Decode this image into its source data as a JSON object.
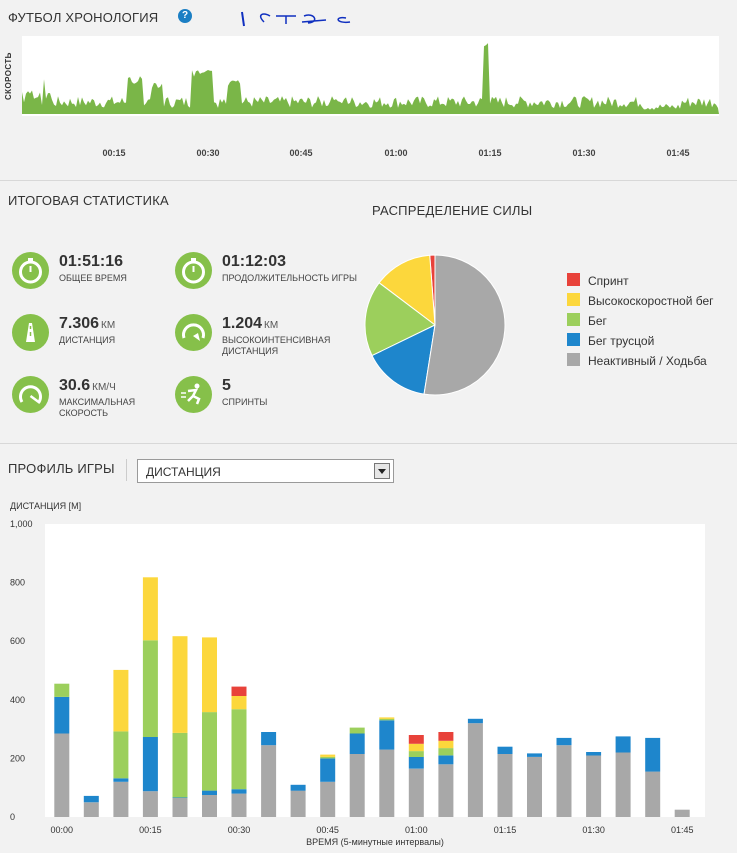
{
  "timeline": {
    "title": "ФУТБОЛ ХРОНОЛОГИЯ",
    "help_icon": "?",
    "ylabel": "СКОРОСТЬ",
    "ticks": [
      "00:15",
      "00:30",
      "00:45",
      "01:00",
      "01:15",
      "01:30",
      "01:45"
    ],
    "color": "#7ab648"
  },
  "summary": {
    "title": "ИТОГОВАЯ СТАТИСТИКА",
    "stats": [
      {
        "value": "01:51:16",
        "unit": "",
        "label": "ОБЩЕЕ ВРЕМЯ",
        "icon": "stopwatch-icon"
      },
      {
        "value": "01:12:03",
        "unit": "",
        "label": "ПРОДОЛЖИТЕЛЬНОСТЬ ИГРЫ",
        "icon": "stopwatch-icon"
      },
      {
        "value": "7.306",
        "unit": "КМ",
        "label": "ДИСТАНЦИЯ",
        "icon": "road-icon"
      },
      {
        "value": "1.204",
        "unit": "КМ",
        "label": "ВЫСОКОИНТЕНСИВНАЯ ДИСТАНЦИЯ",
        "icon": "speed-gauge-icon"
      },
      {
        "value": "30.6",
        "unit": "КМ/Ч",
        "label": "МАКСИМАЛЬНАЯ СКОРОСТЬ",
        "icon": "speedometer-icon"
      },
      {
        "value": "5",
        "unit": "",
        "label": "СПРИНТЫ",
        "icon": "sprinter-icon"
      }
    ]
  },
  "distribution": {
    "title": "РАСПРЕДЕЛЕНИЕ СИЛЫ",
    "legend": [
      {
        "label": "Спринт",
        "color": "#e8423a"
      },
      {
        "label": "Высокоскоростной бег",
        "color": "#fcd73c"
      },
      {
        "label": "Бег",
        "color": "#9ccf5c"
      },
      {
        "label": "Бег трусцой",
        "color": "#1e86cc"
      },
      {
        "label": "Неактивный / Ходьба",
        "color": "#a8a8a8"
      }
    ]
  },
  "profile": {
    "title": "ПРОФИЛЬ ИГРЫ",
    "selected": "ДИСТАНЦИЯ"
  },
  "chart_data": [
    {
      "type": "pie",
      "title": "РАСПРЕДЕЛЕНИЕ СИЛЫ",
      "categories": [
        "Спринт",
        "Высокоскоростной бег",
        "Бег",
        "Бег трусцой",
        "Неактивный / Ходьба"
      ],
      "values": [
        1.2,
        13.5,
        17.5,
        15.3,
        52.5
      ],
      "colors": [
        "#e8423a",
        "#fcd73c",
        "#9ccf5c",
        "#1e86cc",
        "#a8a8a8"
      ],
      "legend": "right"
    },
    {
      "type": "bar",
      "stacked": true,
      "ylabel": "ДИСТАНЦИЯ [M]",
      "xlabel": "ВРЕМЯ (5-минутные интервалы)",
      "ylim": [
        0,
        1000
      ],
      "yticks": [
        "0",
        "200",
        "400",
        "600",
        "800",
        "1,000"
      ],
      "xticks": [
        "00:00",
        "00:15",
        "00:30",
        "00:45",
        "01:00",
        "01:15",
        "01:30",
        "01:45"
      ],
      "x": [
        "00:00",
        "00:05",
        "00:10",
        "00:15",
        "00:20",
        "00:25",
        "00:30",
        "00:35",
        "00:40",
        "00:45",
        "00:50",
        "00:55",
        "01:00",
        "01:05",
        "01:10",
        "01:15",
        "01:20",
        "01:25",
        "01:30",
        "01:35",
        "01:40",
        "01:45"
      ],
      "series": [
        {
          "name": "Неактивный / Ходьба",
          "color": "#a8a8a8",
          "values": [
            285,
            50,
            120,
            88,
            65,
            75,
            80,
            245,
            90,
            120,
            215,
            230,
            165,
            180,
            320,
            215,
            205,
            245,
            210,
            220,
            155,
            25
          ]
        },
        {
          "name": "Бег трусцой",
          "color": "#1e86cc",
          "values": [
            125,
            22,
            12,
            185,
            2,
            15,
            15,
            45,
            20,
            80,
            70,
            100,
            40,
            30,
            15,
            25,
            12,
            25,
            12,
            55,
            115,
            0
          ]
        },
        {
          "name": "Бег",
          "color": "#9ccf5c",
          "values": [
            45,
            0,
            160,
            330,
            220,
            268,
            273,
            0,
            0,
            5,
            20,
            5,
            20,
            25,
            0,
            0,
            0,
            0,
            0,
            0,
            0,
            0
          ]
        },
        {
          "name": "Высокоскоростной бег",
          "color": "#fcd73c",
          "values": [
            0,
            0,
            210,
            215,
            330,
            255,
            45,
            0,
            0,
            8,
            0,
            5,
            25,
            25,
            0,
            0,
            0,
            0,
            0,
            0,
            0,
            0
          ]
        },
        {
          "name": "Спринт",
          "color": "#e8423a",
          "values": [
            0,
            0,
            0,
            0,
            0,
            0,
            32,
            0,
            0,
            0,
            0,
            0,
            30,
            30,
            0,
            0,
            0,
            0,
            0,
            0,
            0,
            0
          ]
        }
      ]
    }
  ]
}
